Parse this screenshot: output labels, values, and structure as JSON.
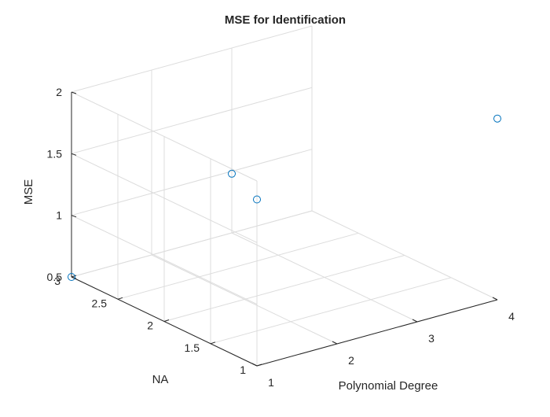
{
  "chart_data": {
    "type": "scatter",
    "title": "MSE for Identification",
    "xlabel": "Polynomial Degree",
    "ylabel": "NA",
    "zlabel": "MSE",
    "xlim": [
      1,
      4
    ],
    "ylim": [
      1,
      3
    ],
    "zlim": [
      0.5,
      2
    ],
    "xticks": [
      "1",
      "2",
      "3",
      "4"
    ],
    "yticks": [
      "1",
      "1.5",
      "2",
      "2.5",
      "3"
    ],
    "zticks": [
      "0.5",
      "1",
      "1.5",
      "2"
    ],
    "grid": true,
    "marker_color": "#0072BD",
    "points": [
      {
        "x": 1,
        "y": 3,
        "z": 0.5
      },
      {
        "x": 1,
        "y": 1,
        "z": 1.85
      },
      {
        "x": 3,
        "y": 3,
        "z": 0.98
      },
      {
        "x": 4,
        "y": 1,
        "z": 1.97
      }
    ]
  }
}
